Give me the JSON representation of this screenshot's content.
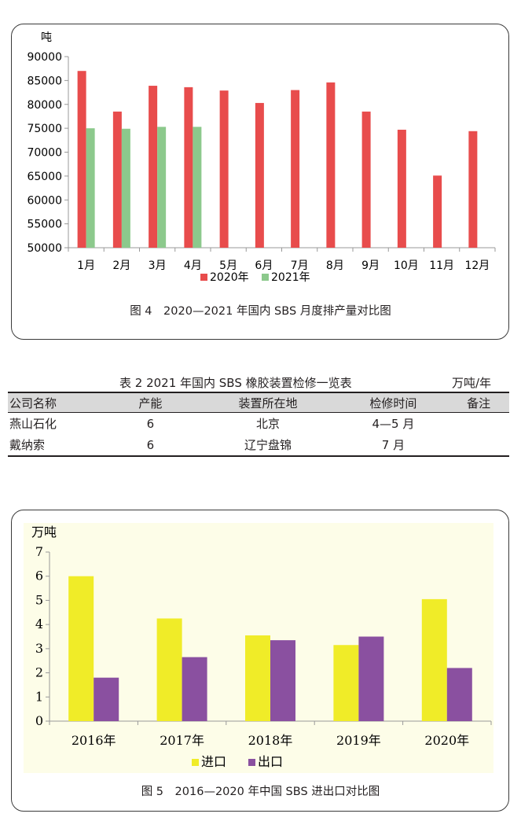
{
  "figure4": {
    "caption": "图 4　2020—2021 年国内 SBS 月度排产量对比图",
    "chart_data": {
      "type": "bar",
      "ylabel": "吨",
      "ylim": [
        50000,
        90000
      ],
      "yticks": [
        "50000",
        "55000",
        "60000",
        "65000",
        "70000",
        "75000",
        "80000",
        "85000",
        "90000"
      ],
      "categories": [
        "1月",
        "2月",
        "3月",
        "4月",
        "5月",
        "6月",
        "7月",
        "8月",
        "9月",
        "10月",
        "11月",
        "12月"
      ],
      "series": [
        {
          "name": "2020年",
          "color": "#e84c4c",
          "values": [
            87000,
            78500,
            83900,
            83600,
            82900,
            80300,
            83000,
            84600,
            78500,
            74700,
            65100,
            74400
          ]
        },
        {
          "name": "2021年",
          "color": "#8cc98c",
          "values": [
            75000,
            74900,
            75300,
            75300,
            null,
            null,
            null,
            null,
            null,
            null,
            null,
            null
          ]
        }
      ],
      "legend": "bottom"
    }
  },
  "table2": {
    "title": "表 2  2021 年国内 SBS 橡胶装置检修一览表",
    "unit": "万吨/年",
    "headers": [
      "公司名称",
      "产能",
      "装置所在地",
      "检修时间",
      "备注"
    ],
    "rows": [
      [
        "燕山石化",
        "6",
        "北京",
        "4—5 月",
        ""
      ],
      [
        "戴纳索",
        "6",
        "辽宁盘锦",
        "7 月",
        ""
      ]
    ]
  },
  "figure5": {
    "caption": "图 5　2016—2020 年中国 SBS 进出口对比图",
    "chart_data": {
      "type": "bar",
      "ylabel": "万吨",
      "ylim": [
        0,
        7
      ],
      "yticks": [
        "0",
        "1",
        "2",
        "3",
        "4",
        "5",
        "6",
        "7"
      ],
      "categories": [
        "2016年",
        "2017年",
        "2018年",
        "2019年",
        "2020年"
      ],
      "series": [
        {
          "name": "进口",
          "color": "#f0ec28",
          "values": [
            6.0,
            4.25,
            3.55,
            3.15,
            5.05
          ]
        },
        {
          "name": "出口",
          "color": "#8a50a0",
          "values": [
            1.8,
            2.65,
            3.35,
            3.5,
            2.2
          ]
        }
      ],
      "legend": "bottom"
    }
  }
}
